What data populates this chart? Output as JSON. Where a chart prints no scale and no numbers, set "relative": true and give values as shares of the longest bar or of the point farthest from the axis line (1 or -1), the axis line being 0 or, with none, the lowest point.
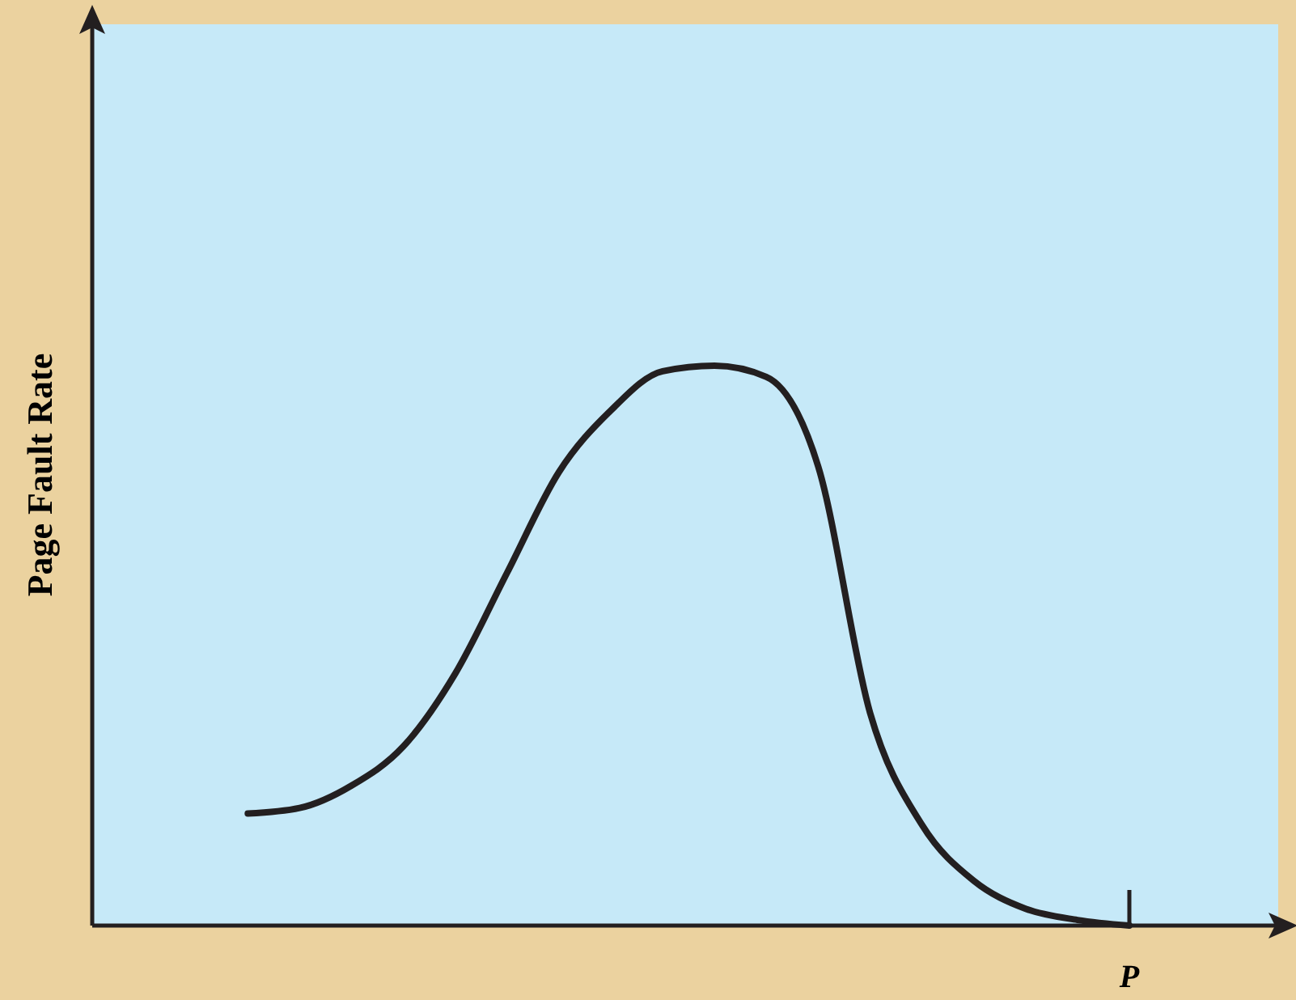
{
  "chart_data": {
    "type": "line",
    "ylabel": "Page Fault Rate",
    "relative": true,
    "annotations": [
      {
        "text": "P",
        "y": 0
      }
    ],
    "categories": [
      null,
      null,
      null,
      null,
      null,
      null,
      null,
      null,
      null,
      null,
      null,
      null,
      null,
      null,
      null,
      null,
      null,
      null,
      null,
      null,
      null
    ],
    "series": [
      {
        "color": "#231f20",
        "values": [
          null,
          null,
          null,
          0.2,
          0.21,
          0.25,
          0.32,
          0.45,
          0.63,
          0.81,
          0.92,
          0.99,
          1.0,
          0.98,
          0.82,
          0.38,
          0.18,
          0.08,
          0.03,
          0.01,
          0
        ]
      }
    ]
  }
}
